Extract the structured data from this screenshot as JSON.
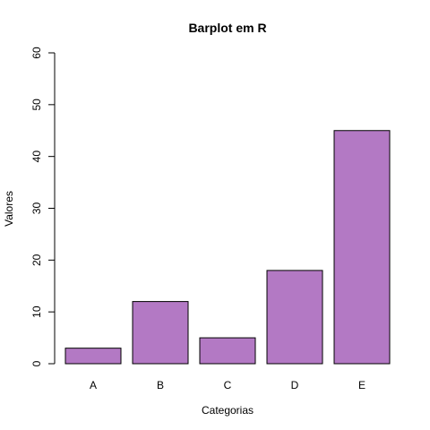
{
  "chart_data": {
    "type": "bar",
    "title": "Barplot em R",
    "xlabel": "Categorias",
    "ylabel": "Valores",
    "categories": [
      "A",
      "B",
      "C",
      "D",
      "E"
    ],
    "values": [
      3,
      12,
      5,
      18,
      45
    ],
    "ylim": [
      0,
      60
    ],
    "yticks": [
      0,
      10,
      20,
      30,
      40,
      50,
      60
    ],
    "bar_color": "#b379c4",
    "bar_border_color": "#000000",
    "grid": false,
    "legend": "none"
  }
}
